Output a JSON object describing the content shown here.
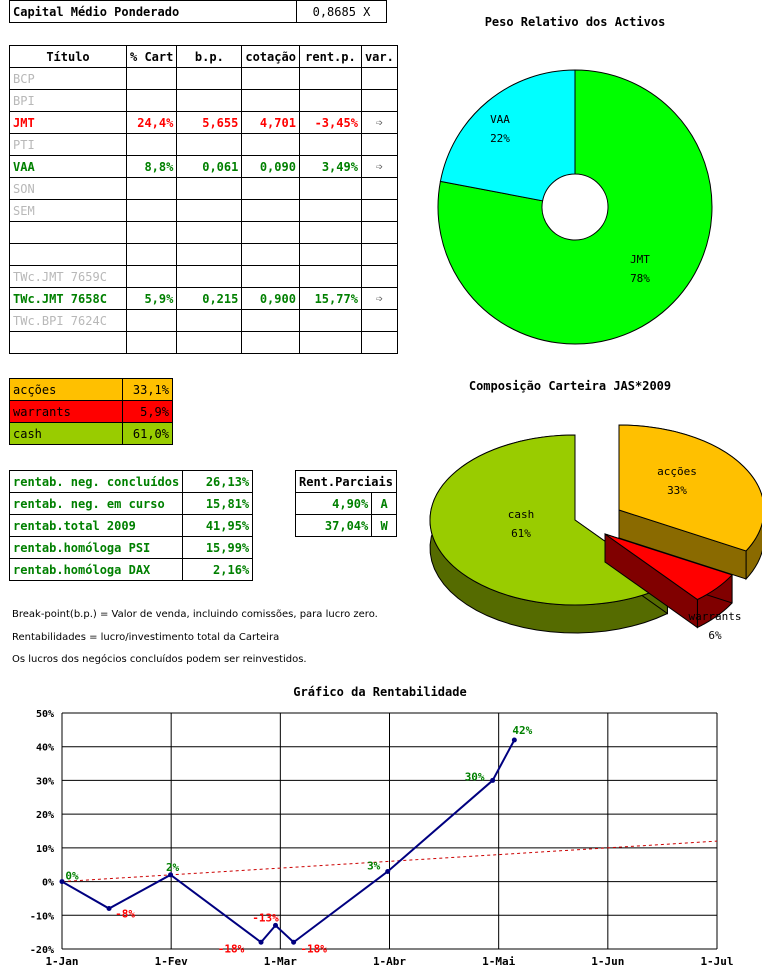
{
  "capital": {
    "label": "Capital Médio Ponderado",
    "value": "0,8685 X"
  },
  "positions": {
    "headers": [
      "Título",
      "% Cart",
      "b.p.",
      "cotação",
      "rent.p.",
      "var."
    ],
    "rows": [
      {
        "t": "BCP",
        "p": "",
        "bp": "",
        "c": "",
        "r": "",
        "v": "",
        "cls": "gray"
      },
      {
        "t": "BPI",
        "p": "",
        "bp": "",
        "c": "",
        "r": "",
        "v": "",
        "cls": "gray"
      },
      {
        "t": "JMT",
        "p": "24,4%",
        "bp": "5,655",
        "c": "4,701",
        "r": "-3,45%",
        "v": "➩",
        "cls": "red"
      },
      {
        "t": "PTI",
        "p": "",
        "bp": "",
        "c": "",
        "r": "",
        "v": "",
        "cls": "gray"
      },
      {
        "t": "VAA",
        "p": "8,8%",
        "bp": "0,061",
        "c": "0,090",
        "r": "3,49%",
        "v": "➩",
        "cls": "green"
      },
      {
        "t": "SON",
        "p": "",
        "bp": "",
        "c": "",
        "r": "",
        "v": "",
        "cls": "gray"
      },
      {
        "t": "SEM",
        "p": "",
        "bp": "",
        "c": "",
        "r": "",
        "v": "",
        "cls": "gray"
      },
      {
        "t": "",
        "p": "",
        "bp": "",
        "c": "",
        "r": "",
        "v": "",
        "cls": ""
      },
      {
        "t": "",
        "p": "",
        "bp": "",
        "c": "",
        "r": "",
        "v": "",
        "cls": ""
      },
      {
        "t": "TWc.JMT 7659C",
        "p": "",
        "bp": "",
        "c": "",
        "r": "",
        "v": "",
        "cls": "gray"
      },
      {
        "t": "TWc.JMT 7658C",
        "p": "5,9%",
        "bp": "0,215",
        "c": "0,900",
        "r": "15,77%",
        "v": "➩",
        "cls": "green"
      },
      {
        "t": "TWc.BPI 7624C",
        "p": "",
        "bp": "",
        "c": "",
        "r": "",
        "v": "",
        "cls": "gray"
      },
      {
        "t": "",
        "p": "",
        "bp": "",
        "c": "",
        "r": "",
        "v": "",
        "cls": ""
      }
    ]
  },
  "composition": [
    {
      "label": "acções",
      "value": "33,1%",
      "bg": "#ffc000",
      "fg": "#000000"
    },
    {
      "label": "warrants",
      "value": "5,9%",
      "bg": "#ff0000",
      "fg": "#000000"
    },
    {
      "label": "cash",
      "value": "61,0%",
      "bg": "#99cc00",
      "fg": "#000000"
    }
  ],
  "returns": [
    {
      "label": "rentab. neg. concluídos",
      "value": "26,13%"
    },
    {
      "label": "rentab. neg. em curso",
      "value": "15,81%"
    },
    {
      "label": "rentab.total 2009",
      "value": "41,95%"
    },
    {
      "label": "rentab.homóloga PSI",
      "value": "15,99%"
    },
    {
      "label": "rentab.homóloga DAX",
      "value": "2,16%"
    }
  ],
  "partials": {
    "header": "Rent.Parciais",
    "rows": [
      {
        "v": "4,90%",
        "k": "A"
      },
      {
        "v": "37,04%",
        "k": "W"
      }
    ]
  },
  "notes": [
    "Break-point(b.p.) = Valor de venda, incluindo comissões, para lucro zero.",
    "Rentabilidades = lucro/investimento total da Carteira",
    "Os lucros dos negócios concluídos podem ser reinvestidos."
  ],
  "chart_data": [
    {
      "type": "pie",
      "title": "Peso Relativo dos Activos",
      "labels": [
        "JMT",
        "VAA"
      ],
      "values": [
        78,
        22
      ],
      "value_labels": [
        "78%",
        "22%"
      ],
      "colors": [
        "#00ff00",
        "#00ffff"
      ]
    },
    {
      "type": "pie",
      "title": "Composição Carteira JAS*2009",
      "labels": [
        "acções",
        "warrants",
        "cash"
      ],
      "values": [
        33,
        6,
        61
      ],
      "value_labels": [
        "33%",
        "6%",
        "61%"
      ],
      "colors": [
        "#ffc000",
        "#ff0000",
        "#99cc00"
      ]
    },
    {
      "type": "line",
      "title": "Gráfico da Rentabilidade",
      "x_ticks": [
        "1-Jan",
        "1-Fev",
        "1-Mar",
        "1-Abr",
        "1-Mai",
        "1-Jun",
        "1-Jul"
      ],
      "y_ticks": [
        "-20%",
        "-10%",
        "0%",
        "10%",
        "20%",
        "30%",
        "40%",
        "50%"
      ],
      "ylim": [
        -20,
        50
      ],
      "xlim": [
        "2009-01-01",
        "2009-07-01"
      ],
      "grid": true,
      "series": [
        {
          "color": "#000080",
          "points": [
            {
              "x": "2009-01-01",
              "y": 0,
              "label": "0%",
              "lc": "#008000"
            },
            {
              "x": "2009-01-14",
              "y": -8,
              "label": "-8%",
              "lc": "#ff0000"
            },
            {
              "x": "2009-01-31",
              "y": 2,
              "label": "2%",
              "lc": "#008000"
            },
            {
              "x": "2009-02-25",
              "y": -18,
              "label": "-18%",
              "lc": "#ff0000"
            },
            {
              "x": "2009-03-01",
              "y": -13,
              "label": "-13%",
              "lc": "#ff0000"
            },
            {
              "x": "2009-03-06",
              "y": -18,
              "label": "-18%",
              "lc": "#ff0000"
            },
            {
              "x": "2009-04-01",
              "y": 3,
              "label": "3%",
              "lc": "#008000"
            },
            {
              "x": "2009-04-30",
              "y": 30,
              "label": "30%",
              "lc": "#008000"
            },
            {
              "x": "2009-05-06",
              "y": 42,
              "label": "42%",
              "lc": "#008000"
            }
          ]
        }
      ],
      "trend": {
        "color": "#cc0000",
        "from": {
          "x": "2009-01-01",
          "y": 0
        },
        "to": {
          "x": "2009-07-01",
          "y": 12
        }
      }
    }
  ]
}
